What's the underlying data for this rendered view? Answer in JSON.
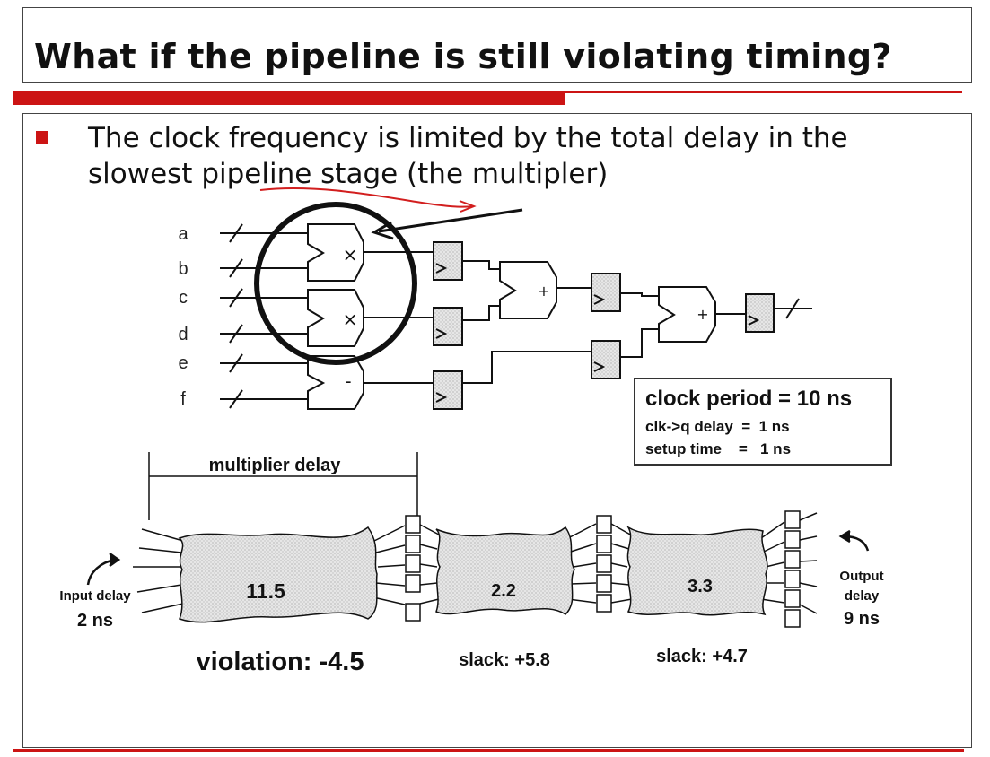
{
  "slide": {
    "title": "What if the pipeline is still violating timing?",
    "bullet": "The clock frequency is limited by the total delay in the slowest pipeline stage (the multipler)",
    "accent_color": "#cc1414"
  },
  "circuit": {
    "inputs": [
      "a",
      "b",
      "c",
      "d",
      "e",
      "f"
    ],
    "ops": [
      "×",
      "×",
      "-",
      "+",
      "+"
    ],
    "clock_period": "clock period = 10 ns",
    "clk_q": "clk->q delay  =  1 ns",
    "setup": "setup time    =   1 ns"
  },
  "timing": {
    "multiplier_delay_label": "multiplier delay",
    "stages": [
      "11.5",
      "2.2",
      "3.3"
    ],
    "input_delay_label": "Input delay",
    "input_delay_value": "2 ns",
    "output_delay_label_1": "Output",
    "output_delay_label_2": "delay",
    "output_delay_value": "9 ns",
    "violation": "violation: -4.5",
    "slack_1": "slack: +5.8",
    "slack_2": "slack: +4.7"
  }
}
